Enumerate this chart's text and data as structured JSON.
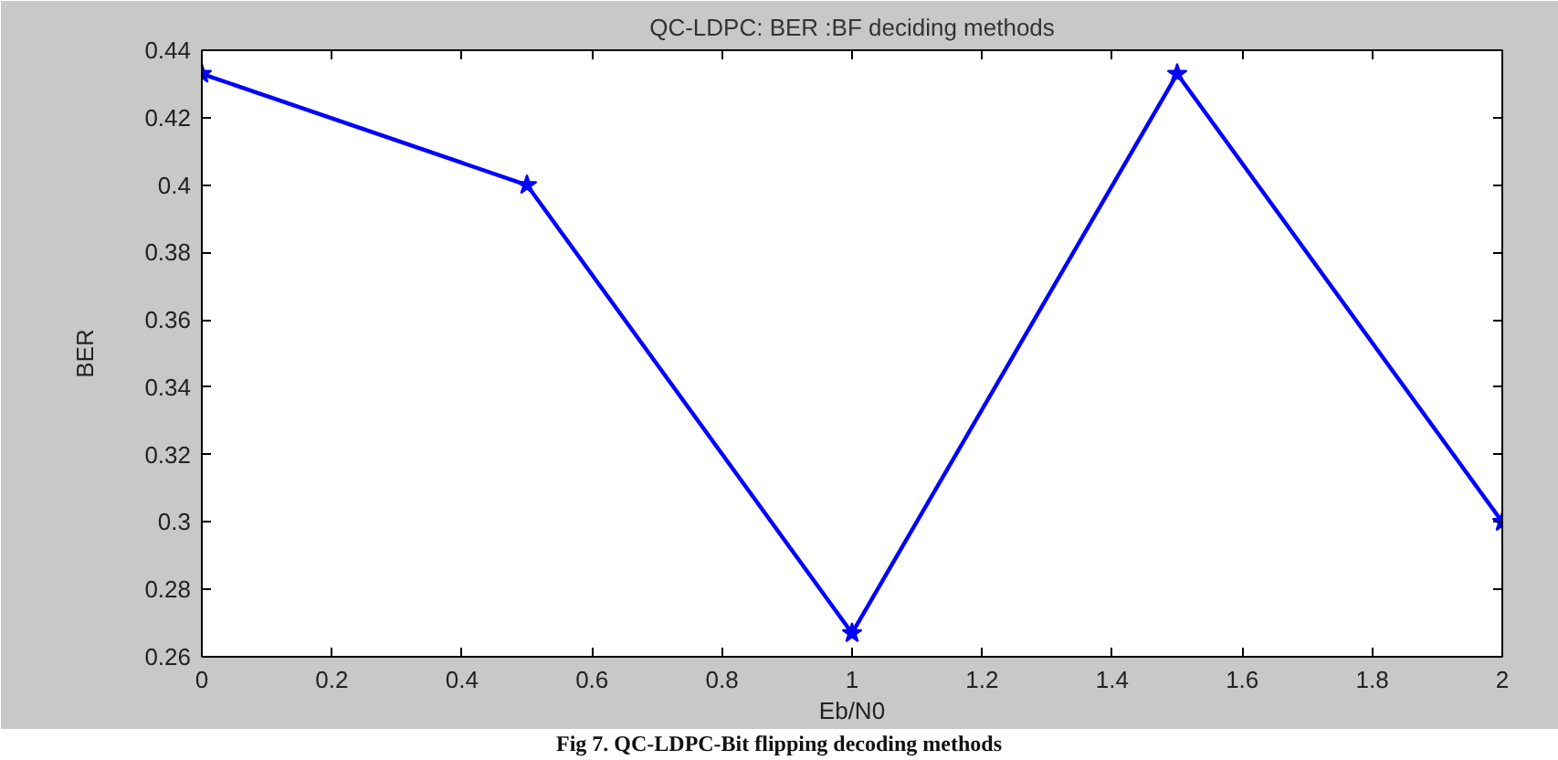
{
  "chart_data": {
    "type": "line",
    "title": "QC-LDPC: BER :BF deciding methods",
    "xlabel": "Eb/N0",
    "ylabel": "BER",
    "x": [
      0,
      0.5,
      1,
      1.5,
      2
    ],
    "series": [
      {
        "color": "#0000ff",
        "values": [
          0.433,
          0.4,
          0.267,
          0.433,
          0.3
        ]
      }
    ],
    "xlim": [
      0,
      2
    ],
    "ylim": [
      0.26,
      0.44
    ],
    "xticks": [
      0,
      0.2,
      0.4,
      0.6,
      0.8,
      1,
      1.2,
      1.4,
      1.6,
      1.8,
      2
    ],
    "yticks": [
      0.26,
      0.28,
      0.3,
      0.32,
      0.34,
      0.36,
      0.38,
      0.4,
      0.42,
      0.44
    ],
    "marker": "star",
    "line_style": "solid",
    "annotations": [
      "Fig 7. QC-LDPC-Bit flipping decoding methods"
    ]
  }
}
